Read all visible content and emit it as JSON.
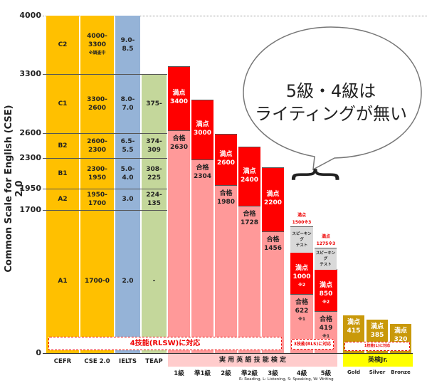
{
  "chart_data": {
    "type": "table",
    "ylabel": "Common Scale for English (CSE) 2.0",
    "yticks": [
      "4000",
      "3300",
      "2600",
      "2300",
      "1950",
      "1700",
      "0"
    ],
    "columns": {
      "cefr": {
        "label": "CEFR",
        "levels": [
          "C2",
          "C1",
          "B2",
          "B1",
          "A2",
          "A1"
        ]
      },
      "cse": {
        "label": "CSE 2.0",
        "levels": [
          "4000-\n3300",
          "3300-\n2600",
          "2600-\n2300",
          "2300-\n1950",
          "1950-\n1700",
          "1700-0"
        ],
        "c2_note": "※調査中"
      },
      "ielts": {
        "label": "IELTS",
        "levels": [
          "9.0-\n8.5",
          "8.0-\n7.0",
          "6.5-\n5.5",
          "5.0-\n4.0",
          "3.0",
          "2.0"
        ]
      },
      "teap": {
        "label": "TEAP",
        "levels": [
          "375-",
          "374-\n309",
          "308-\n225",
          "224-\n135",
          "-"
        ]
      }
    },
    "eiken_title": "実 用 英 語 技 能 検 定",
    "eiken": [
      {
        "grade": "1級",
        "max": 3400,
        "pass": 2630
      },
      {
        "grade": "準1級",
        "max": 3000,
        "pass": 2304
      },
      {
        "grade": "2級",
        "max": 2600,
        "pass": 1980
      },
      {
        "grade": "準2級",
        "max": 2400,
        "pass": 1728
      },
      {
        "grade": "3級",
        "max": 2200,
        "pass": 1456
      },
      {
        "grade": "4級",
        "max": 1000,
        "pass": 622,
        "total": "1500",
        "total_note": "※3",
        "max_note": "※2",
        "pass_note": "※1"
      },
      {
        "grade": "5級",
        "max": 850,
        "pass": 419,
        "total": "1275",
        "total_note": "※3",
        "max_note": "※2",
        "pass_note": "※1"
      }
    ],
    "max_label": "満点",
    "pass_label": "合格",
    "speaking_label": "スピーキング\nテスト",
    "junior_title": "英検Jr.",
    "junior": [
      {
        "grade": "Gold",
        "max": 415
      },
      {
        "grade": "Silver",
        "max": 385
      },
      {
        "grade": "Bronze",
        "max": 320
      }
    ],
    "notes": {
      "four": "4技能(RLSW)に対応",
      "three": "3技能(RLS)に対応",
      "one": "1技能(L)に対応"
    },
    "footnote": "R: Reading,  L: Listening,  S: Speaking,  W: Writing",
    "bubble": [
      "5級・4級は",
      "ライティングが無い"
    ]
  },
  "colors": {
    "cefr": "#FFC000",
    "ielts": "#95B3D7",
    "teap": "#C4D79B",
    "max": "#FF0000",
    "pass": "#FF9999",
    "speaking": "#D9D9D9",
    "junior": "#C9990A",
    "junior_label": "#FFFF00",
    "eiken_label": "#FFCCCC"
  }
}
